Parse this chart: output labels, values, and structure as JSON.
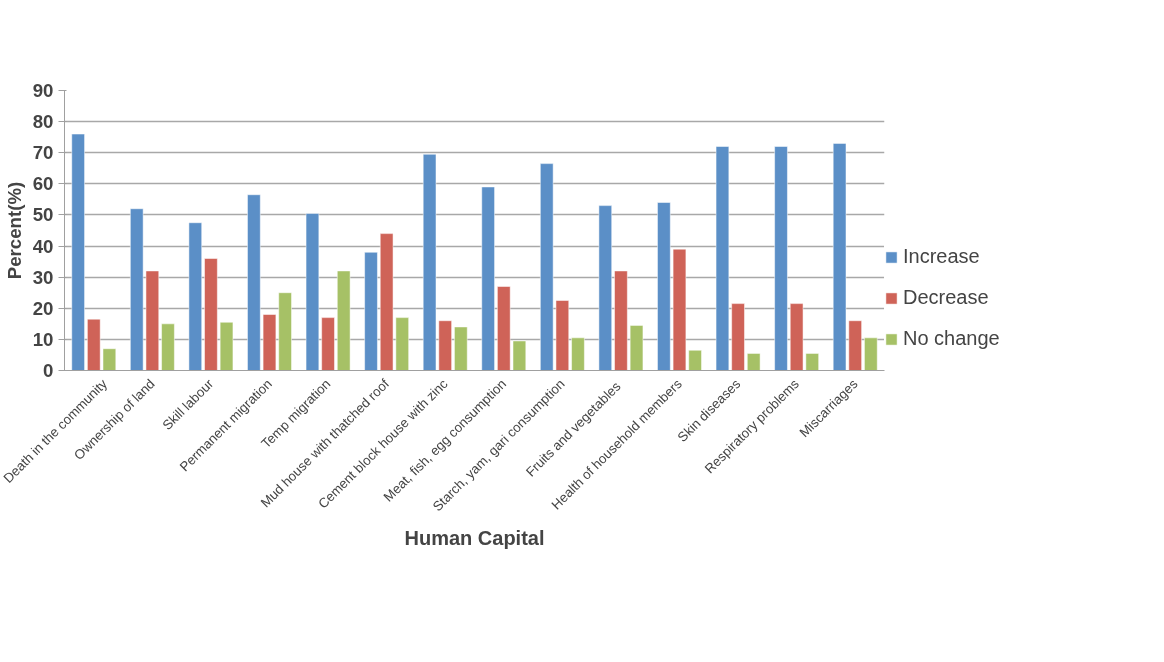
{
  "chart_data": {
    "type": "bar",
    "categories": [
      "Death in the community",
      "Ownership of land",
      "Skill labour",
      "Permanent migration",
      "Temp migration",
      "Mud house with thatched roof",
      "Cement block house with zinc",
      "Meat, fish, egg consumption",
      "Starch, yam, gari consumption",
      "Fruits and  vegetables",
      "Health of household members",
      "Skin diseases",
      "Respiratory problems",
      "Miscarriages"
    ],
    "series": [
      {
        "name": "Increase",
        "color": "#5b8fc7",
        "values": [
          76,
          52,
          47.5,
          56.5,
          50.5,
          38,
          69.5,
          59,
          66.5,
          53,
          54,
          72,
          72,
          73
        ]
      },
      {
        "name": "Decrease",
        "color": "#cf6358",
        "values": [
          16.5,
          32,
          36,
          18,
          17,
          44,
          16,
          27,
          22.5,
          32,
          39,
          21.5,
          21.5,
          16
        ]
      },
      {
        "name": "No change",
        "color": "#a6c166",
        "values": [
          7,
          15,
          15.5,
          25,
          32,
          17,
          14,
          9.5,
          10.5,
          14.5,
          6.5,
          5.5,
          5.5,
          10.5
        ]
      }
    ],
    "xlabel": "Human Capital",
    "ylabel": "Percent(%)",
    "ylim": [
      0,
      90
    ],
    "yticks": [
      0,
      10,
      20,
      30,
      40,
      50,
      60,
      70,
      80,
      90
    ],
    "grid": "y",
    "legend": "right"
  }
}
